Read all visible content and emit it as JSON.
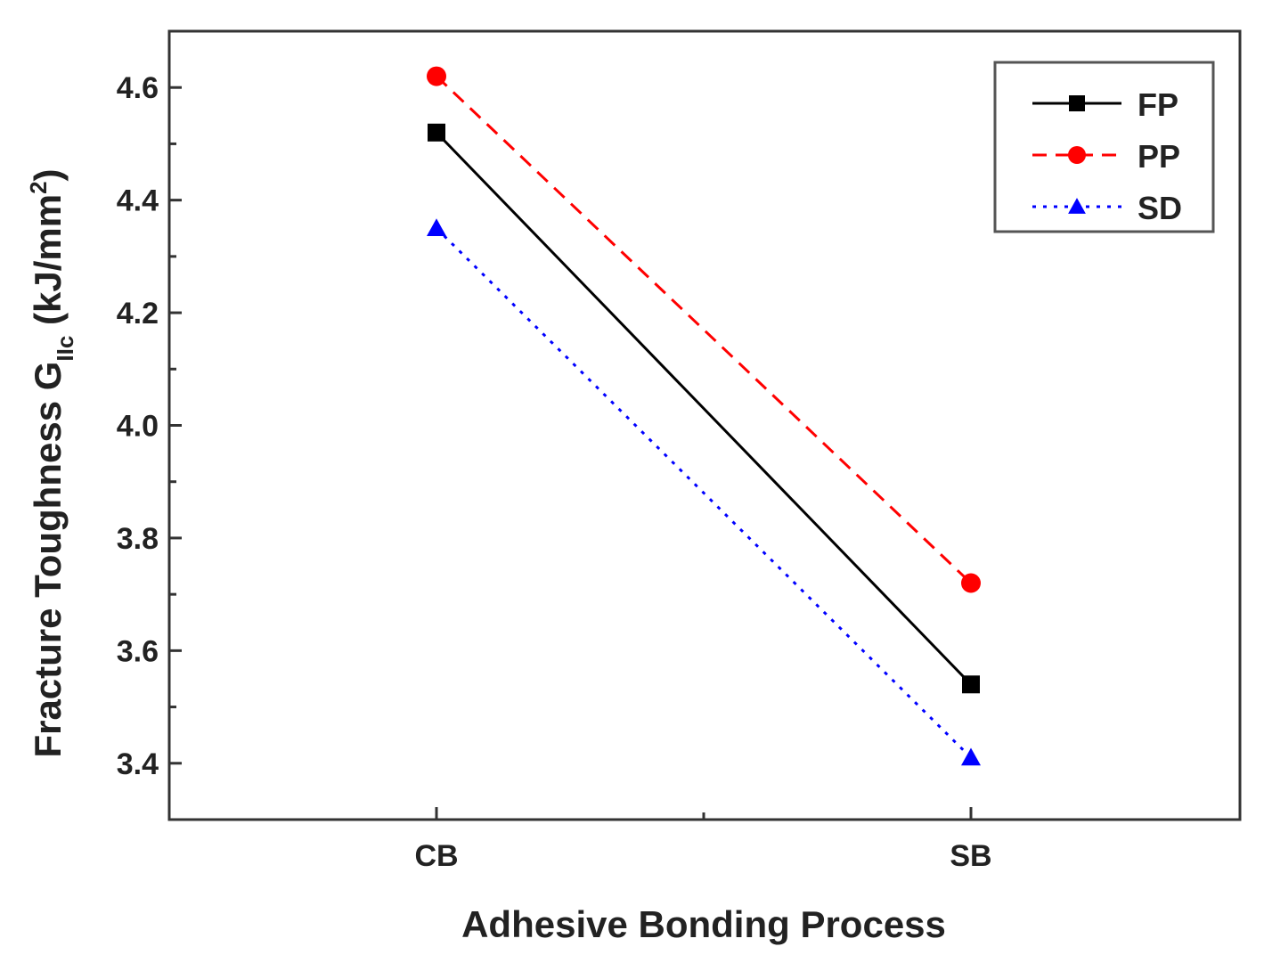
{
  "chart_data": {
    "type": "line",
    "title": "",
    "xlabel": "Adhesive Bonding Process",
    "ylabel": {
      "main": "Fracture Toughness G",
      "subscript": "IIc",
      "unit_prefix": " (kJ/mm",
      "unit_exp": "2",
      "unit_suffix": ")"
    },
    "categories": [
      "CB",
      "SB"
    ],
    "ylim": [
      3.3,
      4.7
    ],
    "yticks": [
      "3.4",
      "3.6",
      "3.8",
      "4.0",
      "4.2",
      "4.4",
      "4.6"
    ],
    "grid": false,
    "legend_position": "top-right",
    "series": [
      {
        "name": "FP",
        "values": [
          4.52,
          3.54
        ],
        "color": "#000000",
        "marker": "square",
        "line": "solid"
      },
      {
        "name": "PP",
        "values": [
          4.62,
          3.72
        ],
        "color": "#ff0000",
        "marker": "circle",
        "line": "dashed"
      },
      {
        "name": "SD",
        "values": [
          4.35,
          3.41
        ],
        "color": "#0000ff",
        "marker": "triangle",
        "line": "dotted"
      }
    ]
  }
}
